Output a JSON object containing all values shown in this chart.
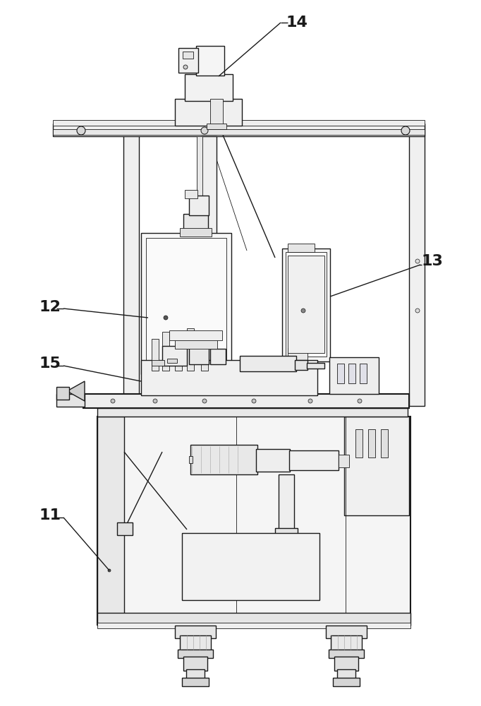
{
  "bg": "#ffffff",
  "lc": "#1a1a1a",
  "fc_white": "#ffffff",
  "fc_light": "#f5f5f5",
  "fc_mid": "#ebebeb",
  "fc_dark": "#d8d8d8",
  "figsize": [
    6.82,
    10.0
  ],
  "dpi": 100
}
